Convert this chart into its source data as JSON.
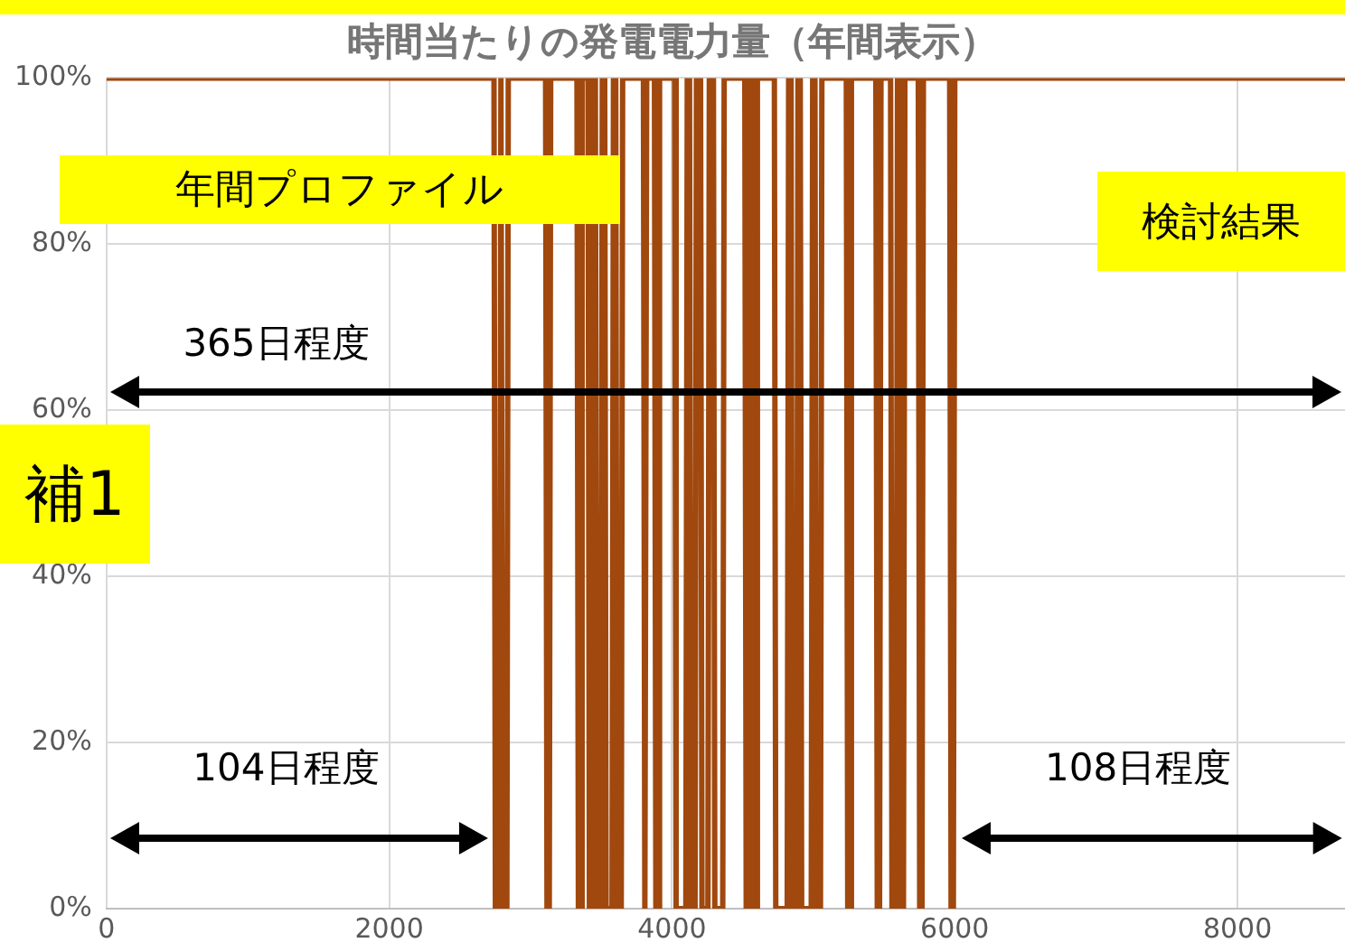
{
  "chart_data": {
    "type": "line",
    "title": "時間当たりの発電電力量（年間表示）",
    "x": [
      0,
      2741,
      2751,
      2780,
      2790,
      2793,
      2803,
      2832,
      2842,
      3106,
      3116,
      3132,
      3142,
      3328,
      3338,
      3354,
      3364,
      3406,
      3416,
      3432,
      3442,
      3458,
      3468,
      3497,
      3507,
      3524,
      3534,
      3576,
      3586,
      3602,
      3612,
      3641,
      3651,
      3798,
      3808,
      3811,
      3821,
      3876,
      3886,
      3902,
      3912,
      4019,
      4029,
      4098,
      4108,
      4124,
      4134,
      4163,
      4173,
      4202,
      4212,
      4254,
      4264,
      4293,
      4303,
      4359,
      4369,
      4515,
      4525,
      4541,
      4551,
      4568,
      4578,
      4594,
      4604,
      4724,
      4734,
      4815,
      4825,
      4842,
      4852,
      4881,
      4891,
      4907,
      4917,
      4985,
      4995,
      5011,
      5021,
      5050,
      5060,
      5233,
      5243,
      5259,
      5269,
      5442,
      5452,
      5468,
      5478,
      5546,
      5556,
      5585,
      5595,
      5611,
      5621,
      5637,
      5647,
      5742,
      5752,
      5768,
      5778,
      5964,
      5974,
      5990,
      6000,
      8760
    ],
    "series": [
      {
        "color": "#a0480e",
        "values": [
          100,
          100,
          0,
          0,
          100,
          100,
          0,
          0,
          100,
          100,
          0,
          0,
          100,
          100,
          0,
          0,
          100,
          100,
          0,
          0,
          100,
          100,
          0,
          0,
          100,
          100,
          0,
          0,
          100,
          100,
          0,
          0,
          100,
          100,
          0,
          0,
          100,
          100,
          0,
          0,
          100,
          100,
          0,
          0,
          100,
          100,
          0,
          0,
          100,
          100,
          0,
          0,
          100,
          100,
          0,
          0,
          100,
          100,
          0,
          0,
          100,
          100,
          0,
          0,
          100,
          100,
          0,
          0,
          100,
          100,
          0,
          0,
          100,
          100,
          0,
          0,
          100,
          100,
          0,
          0,
          100,
          100,
          0,
          0,
          100,
          100,
          0,
          0,
          100,
          100,
          0,
          0,
          100,
          100,
          0,
          0,
          100,
          100,
          0,
          0,
          100,
          100,
          0,
          0,
          100,
          100
        ]
      }
    ],
    "xlim": [
      0,
      8760
    ],
    "xticks": [
      0,
      2000,
      4000,
      6000,
      8000
    ],
    "ylim": [
      0,
      100
    ],
    "yticks": [
      {
        "value": 0,
        "label": "0%"
      },
      {
        "value": 20,
        "label": "20%"
      },
      {
        "value": 40,
        "label": "40%"
      },
      {
        "value": 60,
        "label": "60%"
      },
      {
        "value": 80,
        "label": "80%"
      },
      {
        "value": 100,
        "label": "100%"
      }
    ],
    "grid": true,
    "legend": false,
    "marker": "none",
    "line_style": "solid",
    "annotations": [
      "年間プロファイル",
      "検討結果",
      "補1",
      "365日程度",
      "104日程度",
      "108日程度"
    ]
  }
}
